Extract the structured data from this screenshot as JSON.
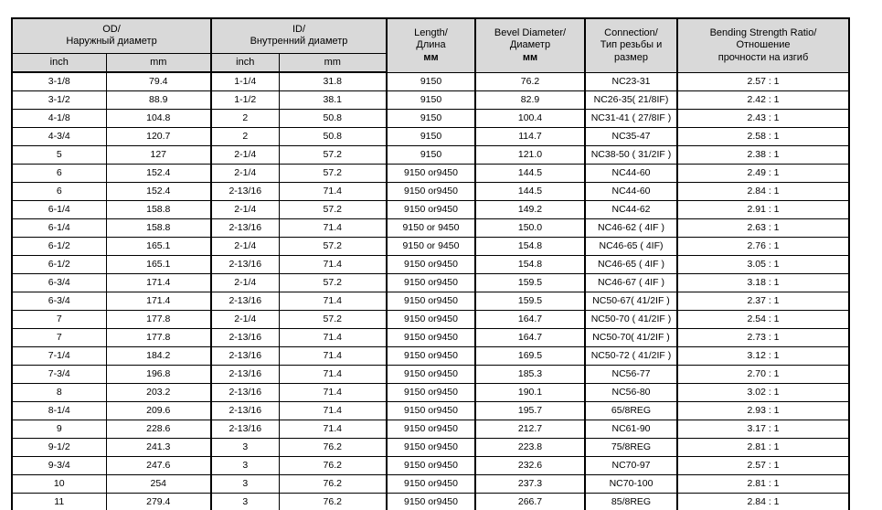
{
  "colors": {
    "header_bg": "#d9d9d9",
    "border": "#000000",
    "text": "#000000",
    "page_bg": "#ffffff"
  },
  "table": {
    "header": {
      "od": {
        "line1": "OD/",
        "line2": "Наружный диаметр"
      },
      "id": {
        "line1": "ID/",
        "line2": "Внутренний диаметр"
      },
      "length": {
        "line1": "Length/",
        "line2": "Длина",
        "line3": "мм"
      },
      "bevel": {
        "line1": "Bevel Diameter/",
        "line2": "Диаметр",
        "line3": "мм"
      },
      "connection": {
        "line1": "Connection/",
        "line2": "Тип резьбы и",
        "line3": "размер"
      },
      "ratio": {
        "line1": "Bending Strength Ratio/",
        "line2": "Отношение",
        "line3": "прочности на изгиб"
      },
      "units": [
        "inch",
        "mm",
        "inch",
        "mm"
      ]
    },
    "columns": [
      "od_inch",
      "od_mm",
      "id_inch",
      "id_mm",
      "length_mm",
      "bevel_diameter_mm",
      "connection",
      "bending_strength_ratio"
    ],
    "rows": [
      [
        "3-1/8",
        "79.4",
        "1-1/4",
        "31.8",
        "9150",
        "76.2",
        "NC23-31",
        "2.57 : 1"
      ],
      [
        "3-1/2",
        "88.9",
        "1-1/2",
        "38.1",
        "9150",
        "82.9",
        "NC26-35( 21/8IF)",
        "2.42 : 1"
      ],
      [
        "4-1/8",
        "104.8",
        "2",
        "50.8",
        "9150",
        "100.4",
        "NC31-41 ( 27/8IF )",
        "2.43 : 1"
      ],
      [
        "4-3/4",
        "120.7",
        "2",
        "50.8",
        "9150",
        "114.7",
        "NC35-47",
        "2.58 : 1"
      ],
      [
        "5",
        "127",
        "2-1/4",
        "57.2",
        "9150",
        "121.0",
        "NC38-50 ( 31/2IF )",
        "2.38 : 1"
      ],
      [
        "6",
        "152.4",
        "2-1/4",
        "57.2",
        "9150 or9450",
        "144.5",
        "NC44-60",
        "2.49 : 1"
      ],
      [
        "6",
        "152.4",
        "2-13/16",
        "71.4",
        "9150 or9450",
        "144.5",
        "NC44-60",
        "2.84 : 1"
      ],
      [
        "6-1/4",
        "158.8",
        "2-1/4",
        "57.2",
        "9150 or9450",
        "149.2",
        "NC44-62",
        "2.91 : 1"
      ],
      [
        "6-1/4",
        "158.8",
        "2-13/16",
        "71.4",
        "9150 or 9450",
        "150.0",
        "NC46-62 ( 4IF )",
        "2.63 : 1"
      ],
      [
        "6-1/2",
        "165.1",
        "2-1/4",
        "57.2",
        "9150 or 9450",
        "154.8",
        "NC46-65 ( 4IF)",
        "2.76 : 1"
      ],
      [
        "6-1/2",
        "165.1",
        "2-13/16",
        "71.4",
        "9150 or9450",
        "154.8",
        "NC46-65 ( 4IF )",
        "3.05 : 1"
      ],
      [
        "6-3/4",
        "171.4",
        "2-1/4",
        "57.2",
        "9150 or9450",
        "159.5",
        "NC46-67 ( 4IF )",
        "3.18 : 1"
      ],
      [
        "6-3/4",
        "171.4",
        "2-13/16",
        "71.4",
        "9150 or9450",
        "159.5",
        "NC50-67( 41/2IF )",
        "2.37 : 1"
      ],
      [
        "7",
        "177.8",
        "2-1/4",
        "57.2",
        "9150 or9450",
        "164.7",
        "NC50-70 ( 41/2IF )",
        "2.54 : 1"
      ],
      [
        "7",
        "177.8",
        "2-13/16",
        "71.4",
        "9150 or9450",
        "164.7",
        "NC50-70( 41/2IF )",
        "2.73 : 1"
      ],
      [
        "7-1/4",
        "184.2",
        "2-13/16",
        "71.4",
        "9150 or9450",
        "169.5",
        "NC50-72 ( 41/2IF )",
        "3.12 : 1"
      ],
      [
        "7-3/4",
        "196.8",
        "2-13/16",
        "71.4",
        "9150 or9450",
        "185.3",
        "NC56-77",
        "2.70 : 1"
      ],
      [
        "8",
        "203.2",
        "2-13/16",
        "71.4",
        "9150 or9450",
        "190.1",
        "NC56-80",
        "3.02 : 1"
      ],
      [
        "8-1/4",
        "209.6",
        "2-13/16",
        "71.4",
        "9150 or9450",
        "195.7",
        "65/8REG",
        "2.93 : 1"
      ],
      [
        "9",
        "228.6",
        "2-13/16",
        "71.4",
        "9150 or9450",
        "212.7",
        "NC61-90",
        "3.17 : 1"
      ],
      [
        "9-1/2",
        "241.3",
        "3",
        "76.2",
        "9150 or9450",
        "223.8",
        "75/8REG",
        "2.81 : 1"
      ],
      [
        "9-3/4",
        "247.6",
        "3",
        "76.2",
        "9150 or9450",
        "232.6",
        "NC70-97",
        "2.57 : 1"
      ],
      [
        "10",
        "254",
        "3",
        "76.2",
        "9150 or9450",
        "237.3",
        "NC70-100",
        "2.81 : 1"
      ],
      [
        "11",
        "279.4",
        "3",
        "76.2",
        "9150 or9450",
        "266.7",
        "85/8REG",
        "2.84 : 1"
      ]
    ]
  }
}
